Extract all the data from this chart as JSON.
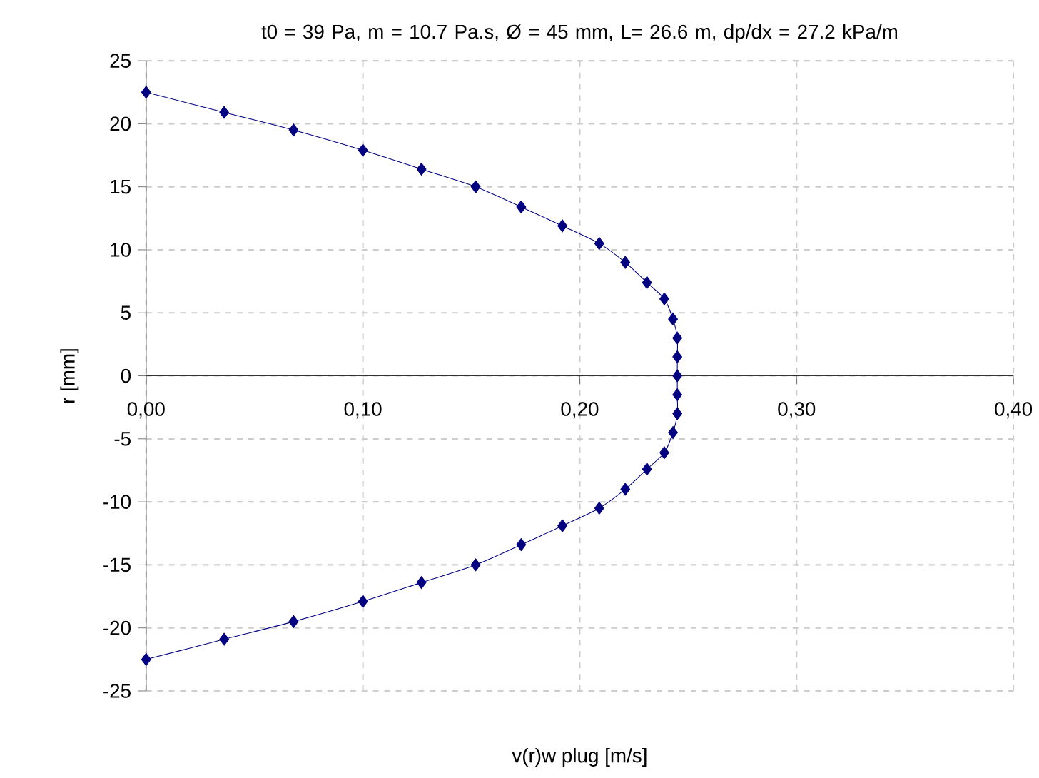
{
  "chart_data": {
    "type": "line",
    "title": "t0 = 39 Pa, m = 10.7 Pa.s, Ø = 45 mm, L= 26.6 m, dp/dx = 27.2 kPa/m",
    "xlabel": "v(r)w plug [m/s]",
    "ylabel": "r [mm]",
    "x": [
      0,
      0.036,
      0.068,
      0.1,
      0.127,
      0.152,
      0.173,
      0.192,
      0.209,
      0.221,
      0.231,
      0.239,
      0.243,
      0.245,
      0.245,
      0.245,
      0.245,
      0.245,
      0.243,
      0.239,
      0.231,
      0.221,
      0.209,
      0.192,
      0.173,
      0.152,
      0.127,
      0.1,
      0.068,
      0.036,
      0
    ],
    "series": [
      {
        "color": "#000080",
        "values": [
          22.5,
          20.9,
          19.5,
          17.9,
          16.4,
          15.0,
          13.4,
          11.9,
          10.5,
          9.0,
          7.4,
          6.1,
          4.5,
          3.0,
          1.5,
          0,
          -1.5,
          -3.0,
          -4.5,
          -6.1,
          -7.4,
          -9.0,
          -10.5,
          -11.9,
          -13.4,
          -15.0,
          -16.4,
          -17.9,
          -19.5,
          -20.9,
          -22.5
        ]
      }
    ],
    "xlim": [
      0,
      0.4
    ],
    "ylim": [
      -25,
      25
    ],
    "xticks": [
      {
        "value": 0,
        "label": "0,00"
      },
      {
        "value": 0.1,
        "label": "0,10"
      },
      {
        "value": 0.2,
        "label": "0,20"
      },
      {
        "value": 0.3,
        "label": "0,30"
      },
      {
        "value": 0.4,
        "label": "0,40"
      }
    ],
    "yticks": [
      {
        "value": -25,
        "label": "-25"
      },
      {
        "value": -20,
        "label": "-20"
      },
      {
        "value": -15,
        "label": "-15"
      },
      {
        "value": -10,
        "label": "-10"
      },
      {
        "value": -5,
        "label": "-5"
      },
      0,
      5,
      10,
      15,
      20,
      25
    ],
    "grid": true,
    "marker": "diamond",
    "line_style": "solid"
  }
}
